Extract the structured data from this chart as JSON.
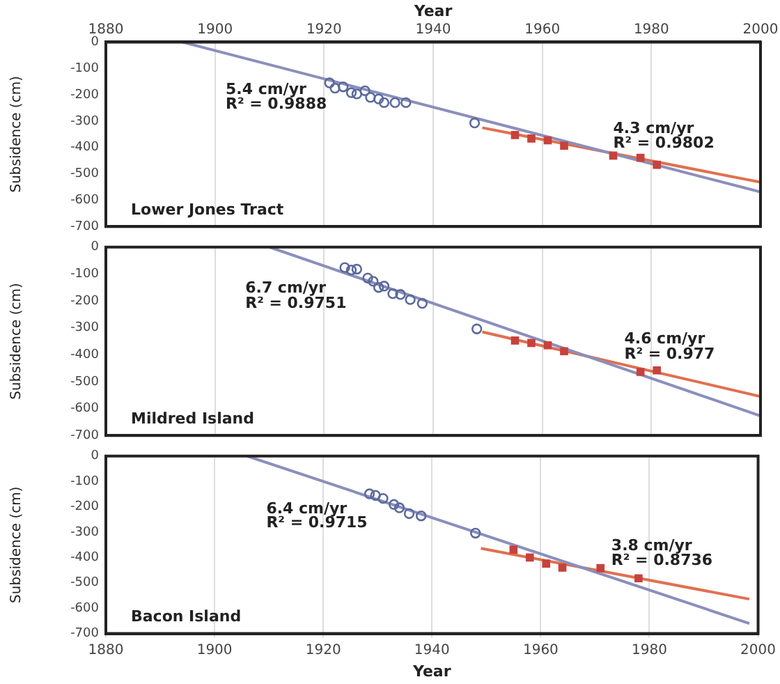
{
  "chart_data": [
    {
      "type": "scatter",
      "title": "Lower Jones Tract",
      "ylabel": "Subsidence (cm)",
      "x2label": "Year",
      "xlim": [
        1880,
        2000
      ],
      "xticks": [
        1880,
        1900,
        1920,
        1940,
        1960,
        1980,
        2000
      ],
      "x2lim": [
        1880,
        2000
      ],
      "x2ticks": [
        1880,
        1900,
        1920,
        1940,
        1960,
        1980,
        2000
      ],
      "ylim": [
        -700,
        0
      ],
      "yticks": [
        0,
        -100,
        -200,
        -300,
        -400,
        -500,
        -600,
        -700
      ],
      "grid": "x",
      "legend": false,
      "tick_labels": "y",
      "annotations": [
        "5.4 cm/yr",
        "R² = 0.9888",
        "4.3 cm/yr",
        "R² = 0.9802"
      ],
      "series": [
        {
          "type": "scatter",
          "marker": "circle",
          "color": "#5a6a9c",
          "x": [
            1921,
            1922,
            1923.5,
            1925,
            1926,
            1927.5,
            1928.5,
            1930,
            1931,
            1933,
            1935,
            1947.6
          ],
          "values": [
            -155,
            -175,
            -170,
            -192,
            -197,
            -185,
            -210,
            -216,
            -230,
            -230,
            -230,
            -307
          ]
        },
        {
          "type": "scatter",
          "marker": "square",
          "color": "#c8423c",
          "x": [
            1955,
            1958,
            1961,
            1964,
            1973,
            1978,
            1981
          ],
          "values": [
            -353,
            -366,
            -373,
            -393,
            -431,
            -439,
            -466
          ]
        },
        {
          "type": "line",
          "marker": "none",
          "color": "#8a8fbc",
          "x": [
            1894,
            2000
          ],
          "values": [
            0,
            -569
          ]
        },
        {
          "type": "line",
          "marker": "none",
          "color": "#e0704f",
          "x": [
            1949,
            2000
          ],
          "values": [
            -325,
            -532
          ]
        }
      ]
    },
    {
      "type": "scatter",
      "title": "Mildred Island",
      "ylabel": "Subsidence (cm)",
      "xlim": [
        1880,
        2000
      ],
      "xticks": [
        1880,
        1900,
        1920,
        1940,
        1960,
        1980,
        2000
      ],
      "ylim": [
        -700,
        0
      ],
      "yticks": [
        0,
        -100,
        -200,
        -300,
        -400,
        -500,
        -600,
        -700
      ],
      "grid": "x",
      "legend": false,
      "tick_labels": "y",
      "annotations": [
        "6.7 cm/yr",
        "R² = 0.9751",
        "4.6 cm/yr",
        "R² = 0.977"
      ],
      "series": [
        {
          "type": "scatter",
          "marker": "circle",
          "color": "#5a6a9c",
          "x": [
            1923.8,
            1925,
            1926,
            1928,
            1929,
            1930,
            1931,
            1932.6,
            1934,
            1935.8,
            1938,
            1948
          ],
          "values": [
            -76,
            -85,
            -82,
            -115,
            -127,
            -150,
            -145,
            -173,
            -176,
            -195,
            -209,
            -304
          ]
        },
        {
          "type": "scatter",
          "marker": "square",
          "color": "#c8423c",
          "x": [
            1955,
            1958,
            1961,
            1964,
            1978,
            1981
          ],
          "values": [
            -347,
            -356,
            -365,
            -387,
            -464,
            -458
          ]
        },
        {
          "type": "line",
          "marker": "none",
          "color": "#8a8fbc",
          "x": [
            1910,
            2000
          ],
          "values": [
            0,
            -627
          ]
        },
        {
          "type": "line",
          "marker": "none",
          "color": "#e0704f",
          "x": [
            1949,
            2000
          ],
          "values": [
            -315,
            -555
          ]
        }
      ]
    },
    {
      "type": "scatter",
      "title": "Bacon Island",
      "ylabel": "Subsidence (cm)",
      "xlabel": "Year",
      "xlim": [
        1880,
        2000
      ],
      "xticks": [
        1880,
        1900,
        1920,
        1940,
        1960,
        1980,
        2000
      ],
      "ylim": [
        -700,
        0
      ],
      "yticks": [
        0,
        -100,
        -200,
        -300,
        -400,
        -500,
        -600,
        -700
      ],
      "grid": "x",
      "legend": false,
      "annotations": [
        "6.4 cm/yr",
        "R² = 0.9715",
        "3.8 cm/yr",
        "R² = 0.8736"
      ],
      "series": [
        {
          "type": "scatter",
          "marker": "circle",
          "color": "#5a6a9c",
          "x": [
            1928.5,
            1929.6,
            1931,
            1933,
            1934,
            1935.8,
            1938,
            1948
          ],
          "values": [
            -149,
            -155,
            -167,
            -191,
            -204,
            -227,
            -236,
            -304
          ]
        },
        {
          "type": "scatter",
          "marker": "square",
          "color": "#c8423c",
          "x": [
            1955,
            1958,
            1961,
            1964,
            1971,
            1978
          ],
          "values": [
            -369,
            -400,
            -424,
            -440,
            -442,
            -482
          ]
        },
        {
          "type": "line",
          "marker": "none",
          "color": "#8a8fbc",
          "x": [
            1906,
            1998.4
          ],
          "values": [
            0,
            -660
          ]
        },
        {
          "type": "line",
          "marker": "none",
          "color": "#e0704f",
          "x": [
            1949,
            1998.4
          ],
          "values": [
            -364,
            -564
          ]
        }
      ]
    }
  ]
}
